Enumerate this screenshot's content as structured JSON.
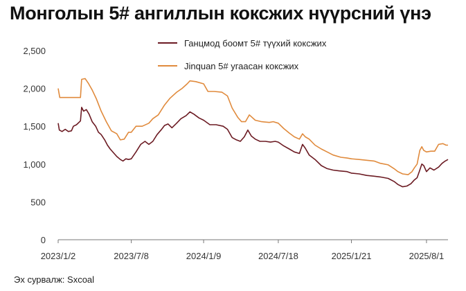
{
  "chart_data": {
    "type": "line",
    "title": "Монголын 5# ангиллын коксжих нүүрсний үнэ",
    "source": "Эх сурвалж: Sxcoal",
    "ylim": [
      0,
      2500
    ],
    "yticks": [
      0,
      500,
      1000,
      1500,
      2000,
      2500
    ],
    "ytick_labels": [
      "0",
      "500",
      "1,000",
      "1,500",
      "2,000",
      "2,500"
    ],
    "xlim": [
      "2023-01-02",
      "2025-09-25"
    ],
    "xticks": [
      "2023-01-02",
      "2023-07-08",
      "2024-01-09",
      "2024-07-18",
      "2025-01-21",
      "2025-08-01"
    ],
    "xtick_labels": [
      "2023/1/2",
      "2023/7/8",
      "2024/1/9",
      "2024/7/18",
      "2025/1/21",
      "2025/8/1"
    ],
    "grid": false,
    "legend_position": "top",
    "series": [
      {
        "name": "Ганцмод боомт 5# түүхий коксжих",
        "color": "#6b1a22",
        "points": [
          [
            "2023-01-02",
            1540
          ],
          [
            "2023-01-05",
            1450
          ],
          [
            "2023-01-12",
            1430
          ],
          [
            "2023-01-20",
            1460
          ],
          [
            "2023-01-28",
            1430
          ],
          [
            "2023-02-05",
            1440
          ],
          [
            "2023-02-10",
            1500
          ],
          [
            "2023-02-18",
            1520
          ],
          [
            "2023-02-28",
            1570
          ],
          [
            "2023-03-03",
            1750
          ],
          [
            "2023-03-08",
            1700
          ],
          [
            "2023-03-15",
            1720
          ],
          [
            "2023-03-22",
            1660
          ],
          [
            "2023-03-30",
            1560
          ],
          [
            "2023-04-08",
            1500
          ],
          [
            "2023-04-15",
            1420
          ],
          [
            "2023-04-22",
            1390
          ],
          [
            "2023-05-01",
            1320
          ],
          [
            "2023-05-08",
            1250
          ],
          [
            "2023-05-15",
            1200
          ],
          [
            "2023-05-25",
            1140
          ],
          [
            "2023-06-01",
            1100
          ],
          [
            "2023-06-10",
            1060
          ],
          [
            "2023-06-17",
            1040
          ],
          [
            "2023-06-24",
            1070
          ],
          [
            "2023-07-01",
            1060
          ],
          [
            "2023-07-08",
            1070
          ],
          [
            "2023-07-20",
            1160
          ],
          [
            "2023-08-01",
            1260
          ],
          [
            "2023-08-12",
            1300
          ],
          [
            "2023-08-22",
            1260
          ],
          [
            "2023-09-01",
            1300
          ],
          [
            "2023-09-12",
            1390
          ],
          [
            "2023-09-22",
            1450
          ],
          [
            "2023-10-01",
            1510
          ],
          [
            "2023-10-10",
            1530
          ],
          [
            "2023-10-20",
            1480
          ],
          [
            "2023-11-01",
            1540
          ],
          [
            "2023-11-12",
            1600
          ],
          [
            "2023-11-25",
            1640
          ],
          [
            "2023-12-05",
            1690
          ],
          [
            "2023-12-15",
            1660
          ],
          [
            "2023-12-28",
            1610
          ],
          [
            "2024-01-09",
            1580
          ],
          [
            "2024-01-25",
            1520
          ],
          [
            "2024-02-10",
            1520
          ],
          [
            "2024-02-28",
            1500
          ],
          [
            "2024-03-10",
            1460
          ],
          [
            "2024-03-22",
            1350
          ],
          [
            "2024-04-02",
            1320
          ],
          [
            "2024-04-12",
            1300
          ],
          [
            "2024-04-22",
            1360
          ],
          [
            "2024-05-01",
            1450
          ],
          [
            "2024-05-10",
            1370
          ],
          [
            "2024-05-20",
            1330
          ],
          [
            "2024-06-01",
            1300
          ],
          [
            "2024-06-15",
            1300
          ],
          [
            "2024-06-28",
            1290
          ],
          [
            "2024-07-10",
            1300
          ],
          [
            "2024-07-18",
            1290
          ],
          [
            "2024-08-01",
            1240
          ],
          [
            "2024-08-15",
            1200
          ],
          [
            "2024-08-28",
            1160
          ],
          [
            "2024-09-10",
            1140
          ],
          [
            "2024-09-18",
            1260
          ],
          [
            "2024-09-25",
            1210
          ],
          [
            "2024-10-05",
            1120
          ],
          [
            "2024-10-20",
            1060
          ],
          [
            "2024-11-05",
            980
          ],
          [
            "2024-11-20",
            940
          ],
          [
            "2024-12-05",
            920
          ],
          [
            "2024-12-20",
            910
          ],
          [
            "2025-01-10",
            900
          ],
          [
            "2025-01-21",
            880
          ],
          [
            "2025-02-10",
            870
          ],
          [
            "2025-03-01",
            850
          ],
          [
            "2025-03-20",
            840
          ],
          [
            "2025-04-05",
            830
          ],
          [
            "2025-04-25",
            810
          ],
          [
            "2025-05-10",
            770
          ],
          [
            "2025-05-20",
            730
          ],
          [
            "2025-06-01",
            700
          ],
          [
            "2025-06-12",
            710
          ],
          [
            "2025-06-22",
            740
          ],
          [
            "2025-07-01",
            790
          ],
          [
            "2025-07-08",
            820
          ],
          [
            "2025-07-15",
            920
          ],
          [
            "2025-07-20",
            1000
          ],
          [
            "2025-07-25",
            980
          ],
          [
            "2025-08-01",
            900
          ],
          [
            "2025-08-10",
            950
          ],
          [
            "2025-08-20",
            920
          ],
          [
            "2025-09-01",
            960
          ],
          [
            "2025-09-10",
            1010
          ],
          [
            "2025-09-18",
            1040
          ],
          [
            "2025-09-25",
            1060
          ]
        ]
      },
      {
        "name": "Jinquan 5# угаасан коксжих",
        "color": "#e08a3c",
        "points": [
          [
            "2023-01-02",
            2000
          ],
          [
            "2023-01-06",
            1880
          ],
          [
            "2023-02-10",
            1880
          ],
          [
            "2023-02-28",
            1880
          ],
          [
            "2023-03-03",
            2120
          ],
          [
            "2023-03-12",
            2130
          ],
          [
            "2023-03-20",
            2070
          ],
          [
            "2023-03-30",
            1980
          ],
          [
            "2023-04-10",
            1860
          ],
          [
            "2023-04-22",
            1700
          ],
          [
            "2023-05-05",
            1560
          ],
          [
            "2023-05-18",
            1440
          ],
          [
            "2023-06-01",
            1400
          ],
          [
            "2023-06-10",
            1320
          ],
          [
            "2023-06-20",
            1330
          ],
          [
            "2023-07-01",
            1420
          ],
          [
            "2023-07-08",
            1420
          ],
          [
            "2023-07-20",
            1500
          ],
          [
            "2023-08-05",
            1500
          ],
          [
            "2023-08-22",
            1540
          ],
          [
            "2023-09-01",
            1600
          ],
          [
            "2023-09-15",
            1650
          ],
          [
            "2023-10-01",
            1780
          ],
          [
            "2023-10-15",
            1870
          ],
          [
            "2023-11-01",
            1950
          ],
          [
            "2023-11-15",
            2000
          ],
          [
            "2023-11-28",
            2060
          ],
          [
            "2023-12-05",
            2100
          ],
          [
            "2023-12-20",
            2090
          ],
          [
            "2024-01-09",
            2060
          ],
          [
            "2024-01-20",
            1960
          ],
          [
            "2024-02-05",
            1960
          ],
          [
            "2024-02-25",
            1950
          ],
          [
            "2024-03-10",
            1900
          ],
          [
            "2024-03-22",
            1740
          ],
          [
            "2024-04-05",
            1620
          ],
          [
            "2024-04-15",
            1560
          ],
          [
            "2024-04-25",
            1560
          ],
          [
            "2024-05-05",
            1650
          ],
          [
            "2024-05-20",
            1580
          ],
          [
            "2024-06-05",
            1560
          ],
          [
            "2024-06-25",
            1550
          ],
          [
            "2024-07-05",
            1560
          ],
          [
            "2024-07-18",
            1540
          ],
          [
            "2024-08-01",
            1470
          ],
          [
            "2024-08-15",
            1410
          ],
          [
            "2024-08-28",
            1360
          ],
          [
            "2024-09-10",
            1330
          ],
          [
            "2024-09-18",
            1400
          ],
          [
            "2024-09-25",
            1360
          ],
          [
            "2024-10-05",
            1330
          ],
          [
            "2024-10-20",
            1250
          ],
          [
            "2024-11-05",
            1200
          ],
          [
            "2024-11-20",
            1160
          ],
          [
            "2024-12-05",
            1120
          ],
          [
            "2024-12-25",
            1090
          ],
          [
            "2025-01-10",
            1080
          ],
          [
            "2025-01-21",
            1070
          ],
          [
            "2025-02-10",
            1060
          ],
          [
            "2025-03-01",
            1050
          ],
          [
            "2025-03-20",
            1040
          ],
          [
            "2025-04-05",
            1010
          ],
          [
            "2025-04-25",
            990
          ],
          [
            "2025-05-10",
            940
          ],
          [
            "2025-05-20",
            900
          ],
          [
            "2025-06-01",
            870
          ],
          [
            "2025-06-15",
            860
          ],
          [
            "2025-06-25",
            900
          ],
          [
            "2025-07-01",
            950
          ],
          [
            "2025-07-08",
            1000
          ],
          [
            "2025-07-15",
            1180
          ],
          [
            "2025-07-20",
            1230
          ],
          [
            "2025-07-25",
            1180
          ],
          [
            "2025-08-01",
            1160
          ],
          [
            "2025-08-12",
            1170
          ],
          [
            "2025-08-22",
            1170
          ],
          [
            "2025-09-01",
            1260
          ],
          [
            "2025-09-12",
            1270
          ],
          [
            "2025-09-20",
            1250
          ],
          [
            "2025-09-25",
            1250
          ]
        ]
      }
    ]
  }
}
